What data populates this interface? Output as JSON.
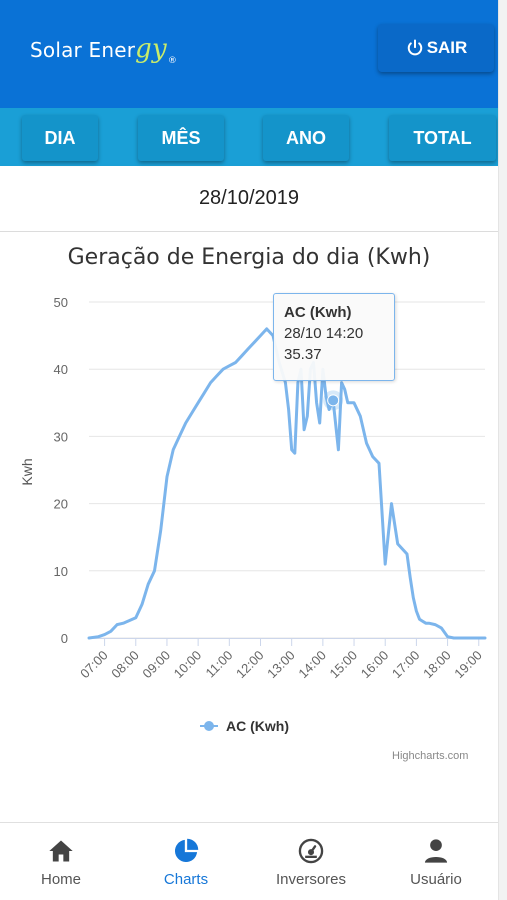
{
  "header": {
    "logo_text": "Solar Ener",
    "logo_script": "gy",
    "logo_mark": "®",
    "logout_label": "SAIR",
    "logout_icon": "power-icon"
  },
  "tabs": [
    {
      "label": "DIA"
    },
    {
      "label": "MÊS"
    },
    {
      "label": "ANO"
    },
    {
      "label": "TOTAL"
    }
  ],
  "date": "28/10/2019",
  "chart": {
    "credits": "Highcharts.com"
  },
  "chart_data": {
    "type": "line",
    "title": "Geração de Energia do dia (Kwh)",
    "ylabel": "Kwh",
    "xlabel": "",
    "ylim": [
      0,
      50
    ],
    "yticks": [
      0,
      10,
      20,
      30,
      40,
      50
    ],
    "xticks": [
      "07:00",
      "08:00",
      "09:00",
      "10:00",
      "11:00",
      "12:00",
      "13:00",
      "14:00",
      "15:00",
      "16:00",
      "17:00",
      "18:00",
      "19:00"
    ],
    "legend": {
      "position": "bottom-center"
    },
    "grid": true,
    "series": [
      {
        "name": "AC (Kwh)",
        "color": "#7cb5ec",
        "x": [
          6.5,
          6.8,
          7.0,
          7.2,
          7.4,
          7.6,
          7.8,
          8.0,
          8.2,
          8.4,
          8.6,
          8.8,
          9.0,
          9.2,
          9.4,
          9.6,
          9.8,
          10.0,
          10.2,
          10.4,
          10.6,
          10.8,
          11.0,
          11.2,
          11.4,
          11.6,
          11.8,
          12.0,
          12.2,
          12.4,
          12.6,
          12.8,
          12.9,
          13.0,
          13.1,
          13.2,
          13.3,
          13.4,
          13.5,
          13.6,
          13.7,
          13.8,
          13.9,
          14.0,
          14.1,
          14.2,
          14.33,
          14.5,
          14.6,
          14.7,
          14.8,
          14.9,
          15.0,
          15.2,
          15.4,
          15.6,
          15.8,
          16.0,
          16.2,
          16.4,
          16.6,
          16.7,
          16.8,
          16.9,
          17.0,
          17.1,
          17.2,
          17.3,
          17.4,
          17.6,
          17.8,
          18.0,
          18.2,
          18.4,
          18.6,
          18.8,
          19.0,
          19.2
        ],
        "values": [
          0,
          0.2,
          0.5,
          1,
          2,
          2.2,
          2.6,
          3,
          5,
          8,
          10,
          16,
          24,
          28,
          30,
          32,
          33.5,
          35,
          36.5,
          38,
          39,
          40,
          40.5,
          41,
          42,
          43,
          44,
          45,
          46,
          45,
          41,
          38,
          34,
          28,
          27.5,
          38,
          40,
          31,
          33,
          40,
          41,
          35,
          32,
          40,
          36,
          34,
          35.37,
          28,
          38,
          37,
          35,
          35,
          35,
          33,
          29,
          27,
          26,
          11,
          20,
          14,
          13,
          12.5,
          9,
          6,
          4,
          2.8,
          2.5,
          2.2,
          2.2,
          2,
          1.5,
          0.2,
          0,
          0,
          0,
          0,
          0,
          0
        ]
      }
    ],
    "tooltip": {
      "series": "AC (Kwh)",
      "time": "28/10 14:20",
      "value": "35.37"
    }
  },
  "bottom_nav": [
    {
      "label": "Home",
      "icon": "home-icon",
      "active": false
    },
    {
      "label": "Charts",
      "icon": "pie-chart-icon",
      "active": true
    },
    {
      "label": "Inversores",
      "icon": "gauge-icon",
      "active": false
    },
    {
      "label": "Usuário",
      "icon": "user-icon",
      "active": false
    }
  ],
  "colors": {
    "header": "#0a72d6",
    "tabs": "#1a9fd6",
    "series": "#7cb5ec",
    "active_nav": "#1677d8"
  }
}
